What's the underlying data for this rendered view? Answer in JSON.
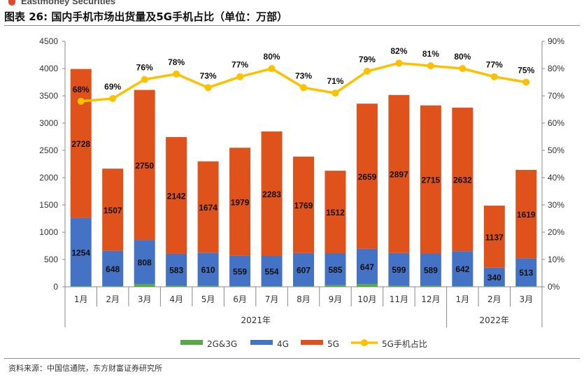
{
  "header": {
    "brand": "Eastmoney Securities",
    "title": "图表 26: 国内手机市场出货量及5G手机占比（单位：万部）",
    "source": "资料来源：中国信通院，东方财富证券研究所"
  },
  "chart_data": {
    "type": "bar+line",
    "title": "国内手机市场出货量及5G手机占比（单位：万部）",
    "categories": [
      "1月",
      "2月",
      "3月",
      "4月",
      "5月",
      "6月",
      "7月",
      "8月",
      "9月",
      "10月",
      "11月",
      "12月",
      "1月",
      "2月",
      "3月"
    ],
    "year_groups": [
      {
        "label": "2021年",
        "start": 0,
        "end": 11
      },
      {
        "label": "2022年",
        "start": 12,
        "end": 14
      }
    ],
    "series": [
      {
        "name": "2G&3G",
        "type": "bar",
        "stack": true,
        "color": "#5aa845",
        "values": [
          10,
          10,
          50,
          20,
          15,
          10,
          10,
          10,
          30,
          50,
          20,
          20,
          10,
          10,
          10
        ]
      },
      {
        "name": "4G",
        "type": "bar",
        "stack": true,
        "color": "#4472c4",
        "values": [
          1254,
          648,
          808,
          583,
          610,
          559,
          554,
          607,
          585,
          647,
          599,
          589,
          642,
          340,
          513
        ]
      },
      {
        "name": "5G",
        "type": "bar",
        "stack": true,
        "color": "#e0521c",
        "values": [
          2728,
          1507,
          2750,
          2142,
          1674,
          1979,
          2283,
          1769,
          1512,
          2659,
          2897,
          2715,
          2632,
          1137,
          1619
        ]
      },
      {
        "name": "5G手机占比",
        "type": "line",
        "axis": "right",
        "color": "#ffc000",
        "values": [
          68,
          69,
          76,
          78,
          73,
          77,
          80,
          73,
          71,
          79,
          82,
          81,
          80,
          77,
          75
        ]
      }
    ],
    "y_left": {
      "min": 0,
      "max": 4500,
      "step": 500,
      "ticks": [
        "0",
        "500",
        "1000",
        "1500",
        "2000",
        "2500",
        "3000",
        "3500",
        "4000",
        "4500"
      ]
    },
    "y_right": {
      "min": 0,
      "max": 90,
      "step": 10,
      "ticks": [
        "0%",
        "10%",
        "20%",
        "30%",
        "40%",
        "50%",
        "60%",
        "70%",
        "80%",
        "90%"
      ]
    },
    "legend_position": "bottom",
    "grid": false
  }
}
